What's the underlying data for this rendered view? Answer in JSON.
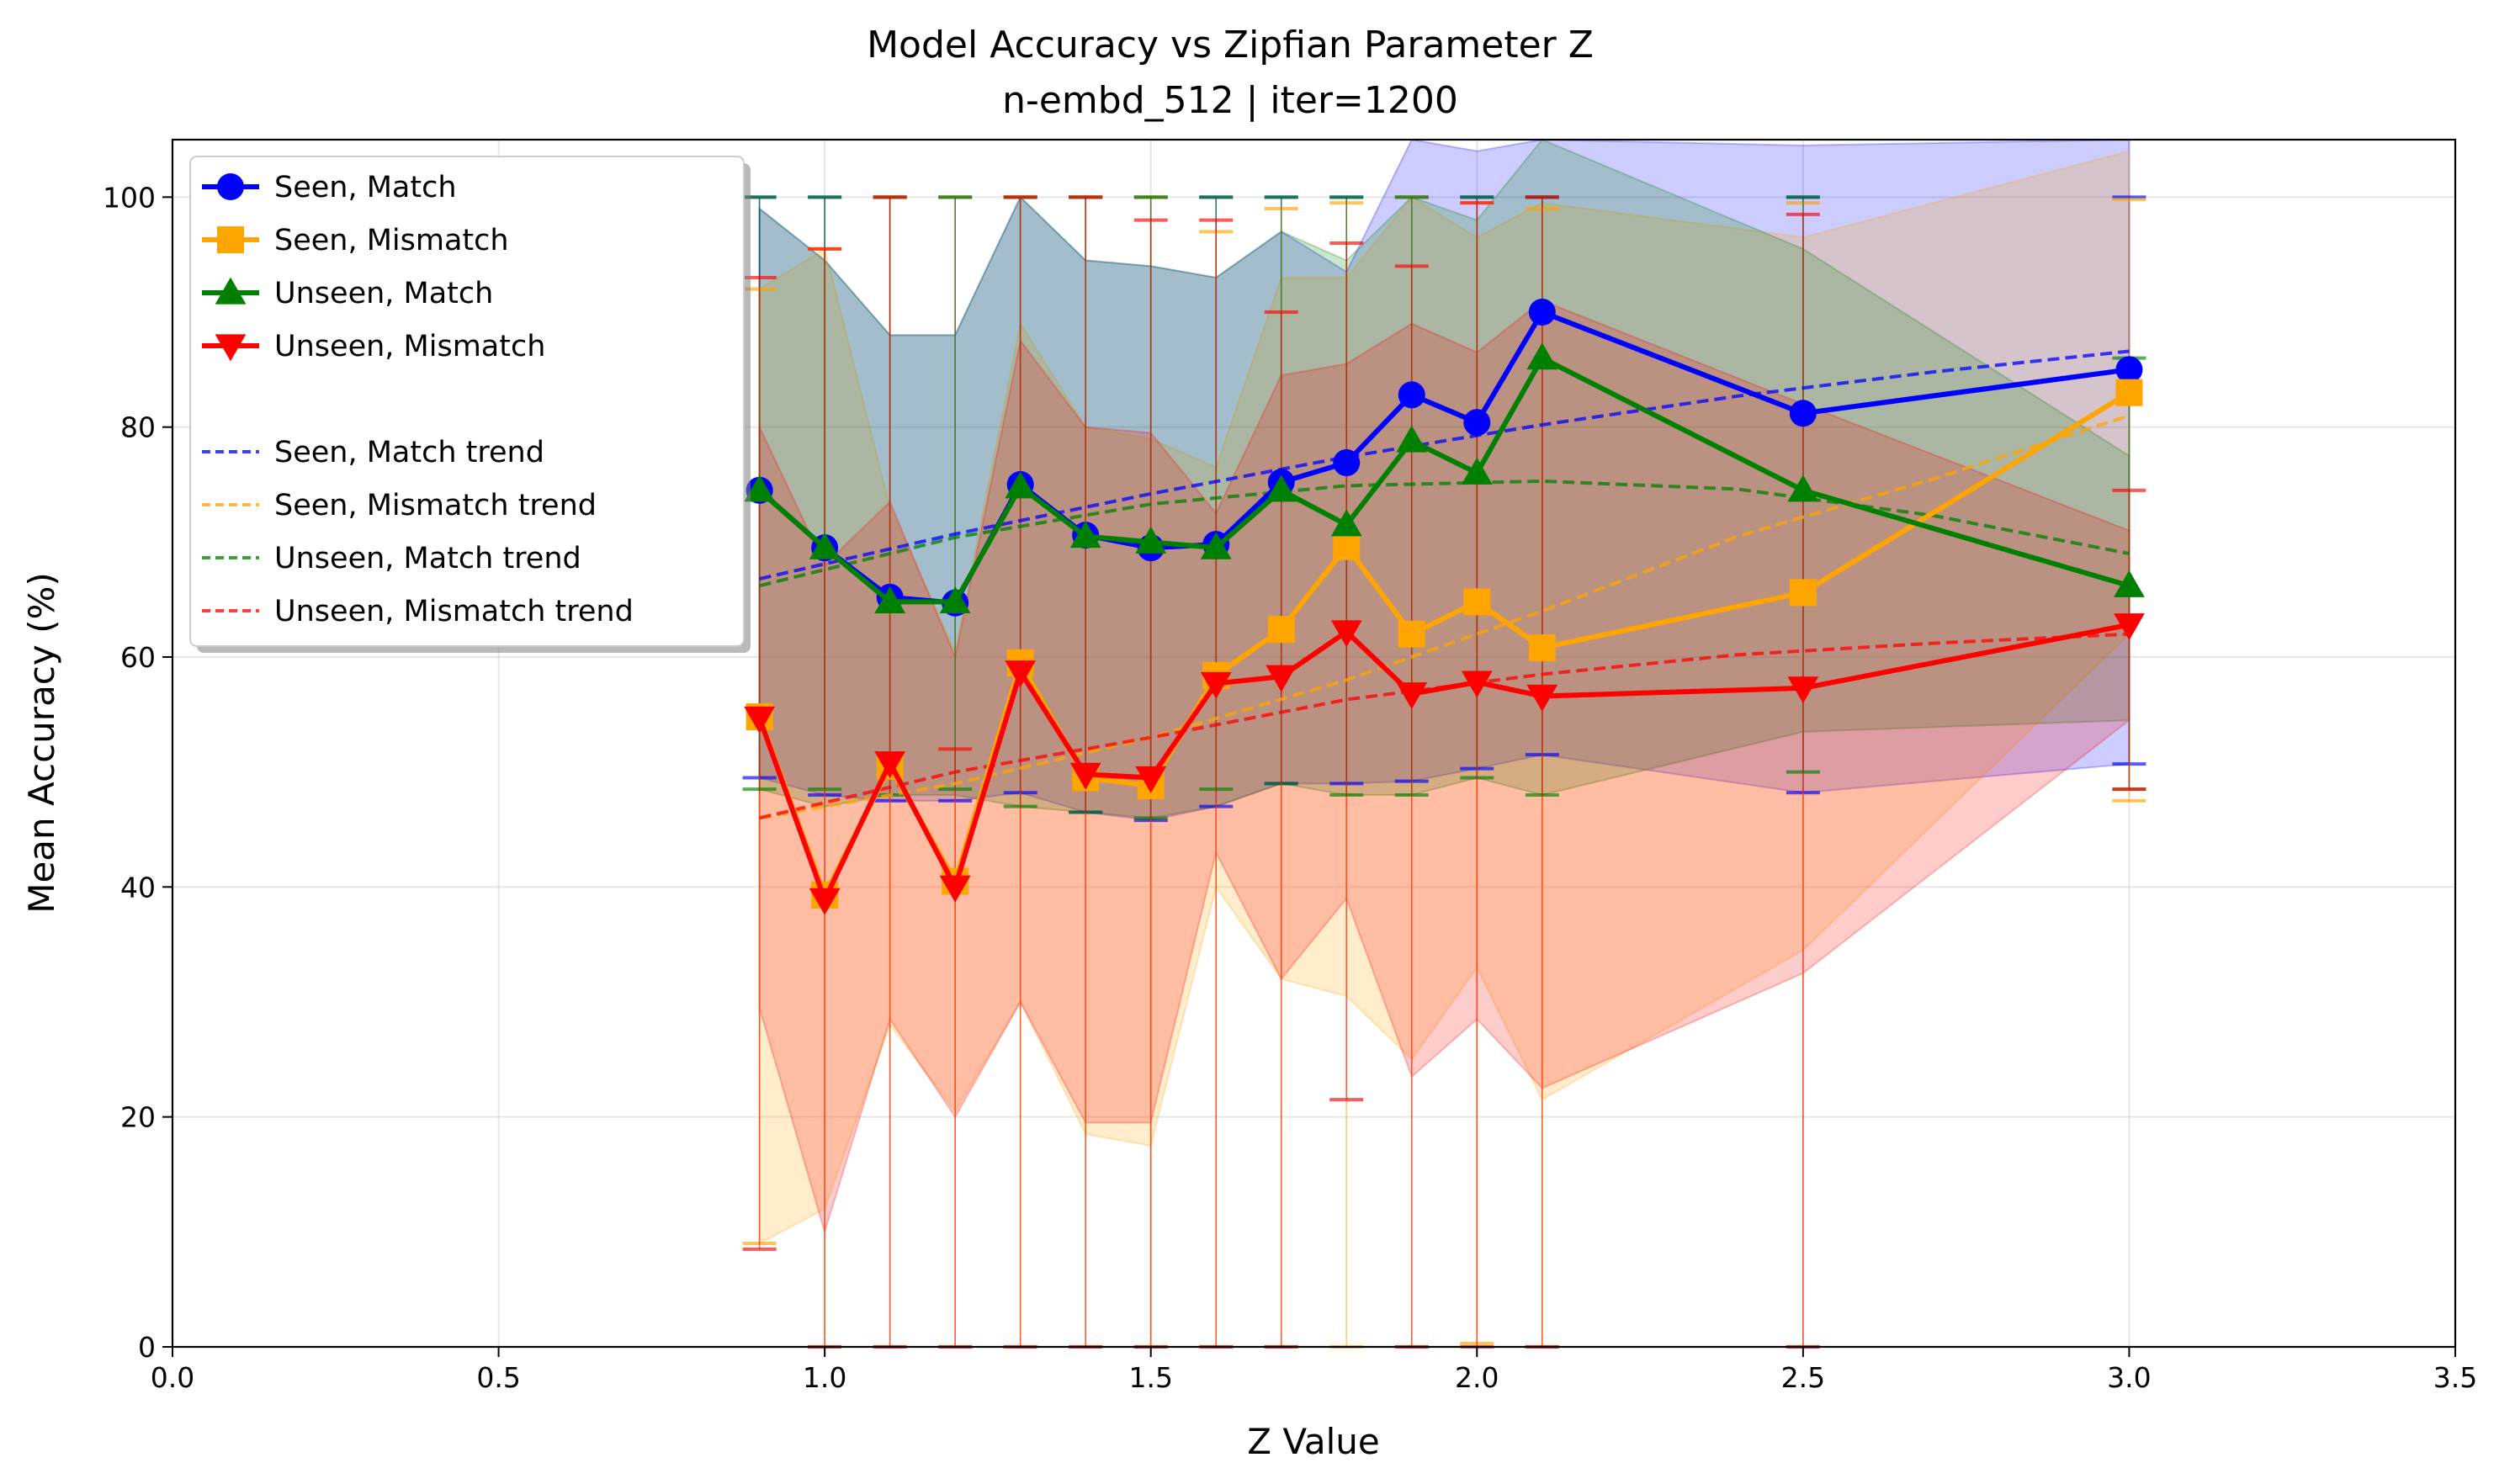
{
  "chart_data": {
    "type": "line",
    "title": "Model Accuracy vs Zipfian Parameter Z",
    "subtitle": "n-embd_512 | iter=1200",
    "xlabel": "Z Value",
    "ylabel": "Mean Accuracy (%)",
    "xlim": [
      0.0,
      3.5
    ],
    "ylim": [
      0,
      105
    ],
    "xticks": [
      "0.0",
      "0.5",
      "1.0",
      "1.5",
      "2.0",
      "2.5",
      "3.0",
      "3.5"
    ],
    "yticks": [
      "0",
      "20",
      "40",
      "60",
      "80",
      "100"
    ],
    "grid": true,
    "legend_position": "top-left",
    "x": [
      0.9,
      1.0,
      1.1,
      1.2,
      1.3,
      1.4,
      1.5,
      1.6,
      1.7,
      1.8,
      1.9,
      2.0,
      2.1,
      2.5,
      3.0
    ],
    "series": [
      {
        "name": "Seen, Match",
        "color": "#0000ff",
        "marker": "circle",
        "values": [
          74.5,
          69.5,
          65.2,
          64.7,
          75.0,
          70.6,
          69.5,
          69.8,
          75.2,
          76.9,
          82.8,
          80.4,
          90.0,
          81.2,
          85.0
        ],
        "band_lower": [
          49.5,
          48.0,
          47.5,
          47.5,
          48.2,
          46.5,
          45.8,
          47.0,
          49.0,
          49.0,
          49.2,
          50.3,
          51.5,
          48.2,
          50.7
        ],
        "band_upper": [
          99.0,
          94.5,
          88.0,
          88.0,
          100.0,
          94.5,
          94.0,
          93.0,
          97.0,
          93.5,
          108.0,
          104.0,
          108.0,
          104.5,
          105.0
        ],
        "err_lower": [
          49.5,
          48.0,
          47.5,
          47.5,
          48.2,
          46.5,
          45.8,
          47.0,
          49.0,
          49.0,
          49.2,
          50.3,
          51.5,
          48.2,
          50.7
        ],
        "err_upper": [
          100,
          100,
          100,
          100,
          100,
          100,
          100,
          100,
          100,
          100,
          100,
          100,
          100,
          100,
          100
        ]
      },
      {
        "name": "Seen, Mismatch",
        "color": "#ffa500",
        "marker": "square",
        "values": [
          54.8,
          39.3,
          50.5,
          40.5,
          59.5,
          49.5,
          48.8,
          58.4,
          62.4,
          69.6,
          62.0,
          64.8,
          60.8,
          65.6,
          83.0
        ],
        "band_lower": [
          9.0,
          12.0,
          28.0,
          20.5,
          30.0,
          18.5,
          17.5,
          40.0,
          32.0,
          30.5,
          25.0,
          33.0,
          21.5,
          34.5,
          62.0
        ],
        "band_upper": [
          92.0,
          95.5,
          73.0,
          60.5,
          89.0,
          80.0,
          79.0,
          76.5,
          93.0,
          93.0,
          100.0,
          96.5,
          99.5,
          96.5,
          104.0
        ],
        "err_lower": [
          9.0,
          0,
          0,
          0,
          0,
          0,
          0,
          0,
          0,
          0,
          0,
          0.3,
          0,
          0,
          47.5
        ],
        "err_upper": [
          92.0,
          95.5,
          100,
          100,
          100,
          100,
          100,
          97.0,
          99.0,
          99.5,
          100,
          99.5,
          99.0,
          99.5,
          99.8
        ]
      },
      {
        "name": "Unseen, Match",
        "color": "#008000",
        "marker": "triangle-up",
        "values": [
          74.5,
          69.5,
          64.8,
          64.8,
          74.8,
          70.5,
          70.0,
          69.5,
          74.5,
          71.5,
          78.8,
          76.0,
          86.0,
          74.5,
          66.2
        ],
        "band_lower": [
          48.5,
          47.0,
          48.0,
          48.0,
          47.0,
          46.5,
          46.0,
          47.0,
          49.0,
          48.0,
          48.0,
          49.5,
          48.0,
          53.5,
          54.5
        ],
        "band_upper": [
          99.0,
          94.5,
          88.0,
          88.0,
          100.0,
          94.5,
          94.0,
          93.0,
          97.0,
          94.5,
          100.0,
          98.0,
          105.0,
          95.5,
          77.5
        ],
        "err_lower": [
          48.5,
          48.5,
          48.0,
          48.5,
          47.0,
          46.5,
          46.0,
          48.5,
          49.0,
          48.0,
          48.0,
          49.5,
          48.0,
          50.0,
          48.5
        ],
        "err_upper": [
          100,
          100,
          100,
          100,
          100,
          100,
          100,
          100,
          100,
          100,
          100,
          100,
          100,
          100,
          86.0
        ]
      },
      {
        "name": "Unseen, Mismatch",
        "color": "#ff0000",
        "marker": "triangle-down",
        "values": [
          54.7,
          38.9,
          50.8,
          40.0,
          58.7,
          49.8,
          49.5,
          57.7,
          58.3,
          62.2,
          56.8,
          57.8,
          56.6,
          57.3,
          62.8
        ],
        "band_lower": [
          29.5,
          10.0,
          28.5,
          20.0,
          30.0,
          19.5,
          19.5,
          43.0,
          32.0,
          39.0,
          23.5,
          28.5,
          22.5,
          32.5,
          54.5
        ],
        "band_upper": [
          80.0,
          68.0,
          73.5,
          60.0,
          87.5,
          80.0,
          79.5,
          72.5,
          84.5,
          85.5,
          89.0,
          86.5,
          91.0,
          82.0,
          71.0
        ],
        "err_lower": [
          8.5,
          0,
          0,
          0,
          0,
          0,
          0,
          0,
          0,
          21.5,
          0,
          0,
          0,
          0,
          48.5
        ],
        "err_upper": [
          93.0,
          95.5,
          100,
          52.0,
          100,
          100,
          98.0,
          98.0,
          90.0,
          96.0,
          94.0,
          99.5,
          100,
          98.5,
          74.5
        ]
      }
    ],
    "trends": [
      {
        "name": "Seen, Match trend",
        "color": "#0000ff",
        "x": [
          0.9,
          1.2,
          1.5,
          1.8,
          2.1,
          2.4,
          2.7,
          3.0
        ],
        "values": [
          66.8,
          70.7,
          74.2,
          77.4,
          80.2,
          82.7,
          84.8,
          86.6
        ]
      },
      {
        "name": "Seen, Mismatch trend",
        "color": "#ffa500",
        "x": [
          0.9,
          1.2,
          1.5,
          1.8,
          2.1,
          2.4,
          2.7,
          3.0
        ],
        "values": [
          46.0,
          49.0,
          53.0,
          58.0,
          64.0,
          70.5,
          75.5,
          81.0
        ]
      },
      {
        "name": "Unseen, Match trend",
        "color": "#008000",
        "x": [
          0.9,
          1.2,
          1.5,
          1.8,
          2.1,
          2.4,
          2.7,
          3.0
        ],
        "values": [
          66.2,
          70.4,
          73.3,
          74.9,
          75.3,
          74.6,
          72.3,
          69.0
        ]
      },
      {
        "name": "Unseen, Mismatch trend",
        "color": "#ff0000",
        "x": [
          0.9,
          1.2,
          1.5,
          1.8,
          2.1,
          2.4,
          2.7,
          3.0
        ],
        "values": [
          46.0,
          50.0,
          53.0,
          56.3,
          58.5,
          60.2,
          61.2,
          62.0
        ]
      }
    ]
  }
}
